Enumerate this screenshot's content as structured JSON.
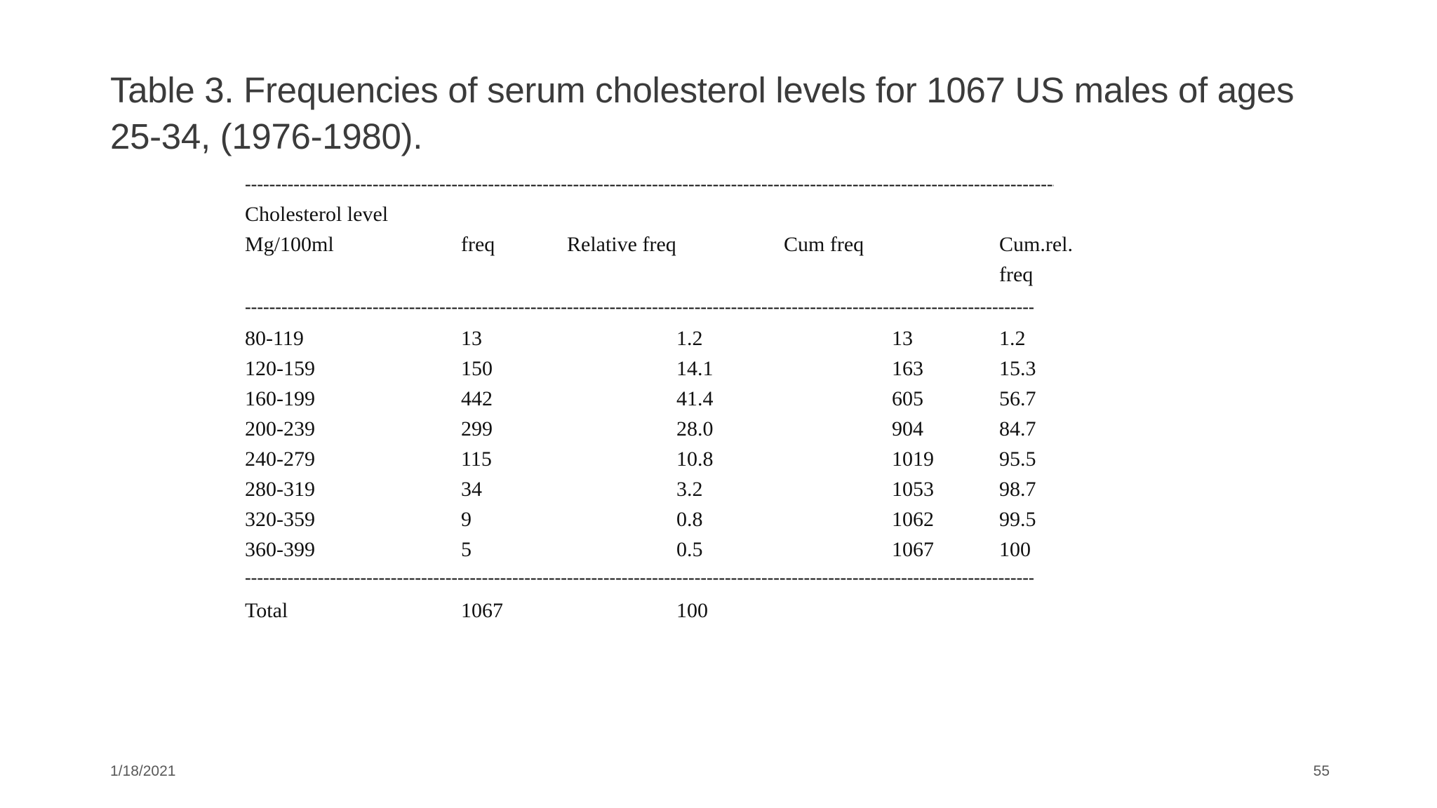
{
  "slide": {
    "title": "Table 3. Frequencies of serum cholesterol levels for 1067 US males of ages 25-34, (1976-1980).",
    "footer": {
      "date": "1/18/2021",
      "page_number": "55"
    }
  },
  "table": {
    "group_label": "Cholesterol level",
    "headers": [
      "Mg/100ml",
      "freq",
      "Relative freq",
      "Cum freq",
      "Cum.rel. freq"
    ],
    "separator": "----------------------------------------------------------------------------------------------------------------------------------------------------------------",
    "rows": [
      [
        "80-119",
        "13",
        "1.2",
        "13",
        "1.2"
      ],
      [
        "120-159",
        "150",
        "14.1",
        "163",
        "15.3"
      ],
      [
        "160-199",
        "442",
        "41.4",
        "605",
        "56.7"
      ],
      [
        "200-239",
        "299",
        "28.0",
        "904",
        "84.7"
      ],
      [
        "240-279",
        "115",
        "10.8",
        "1019",
        "95.5"
      ],
      [
        "280-319",
        "34",
        "3.2",
        "1053",
        "98.7"
      ],
      [
        "320-359",
        "9",
        "0.8",
        "1062",
        "99.5"
      ],
      [
        "360-399",
        "5",
        "0.5",
        "1067",
        "100"
      ]
    ],
    "total_row": {
      "label": "Total",
      "freq": "1067",
      "relative_freq": "100"
    }
  },
  "chart_data": {
    "type": "table",
    "title": "Table 3. Frequencies of serum cholesterol levels for 1067 US males of ages 25-34, (1976-1980).",
    "columns": [
      "Cholesterol level Mg/100ml",
      "freq",
      "Relative freq",
      "Cum freq",
      "Cum.rel. freq"
    ],
    "rows": [
      [
        "80-119",
        13,
        1.2,
        13,
        1.2
      ],
      [
        "120-159",
        150,
        14.1,
        163,
        15.3
      ],
      [
        "160-199",
        442,
        41.4,
        605,
        56.7
      ],
      [
        "200-239",
        299,
        28.0,
        904,
        84.7
      ],
      [
        "240-279",
        115,
        10.8,
        1019,
        95.5
      ],
      [
        "280-319",
        34,
        3.2,
        1053,
        98.7
      ],
      [
        "320-359",
        9,
        0.8,
        1062,
        99.5
      ],
      [
        "360-399",
        5,
        0.5,
        1067,
        100
      ]
    ],
    "total": [
      "Total",
      1067,
      100
    ]
  }
}
